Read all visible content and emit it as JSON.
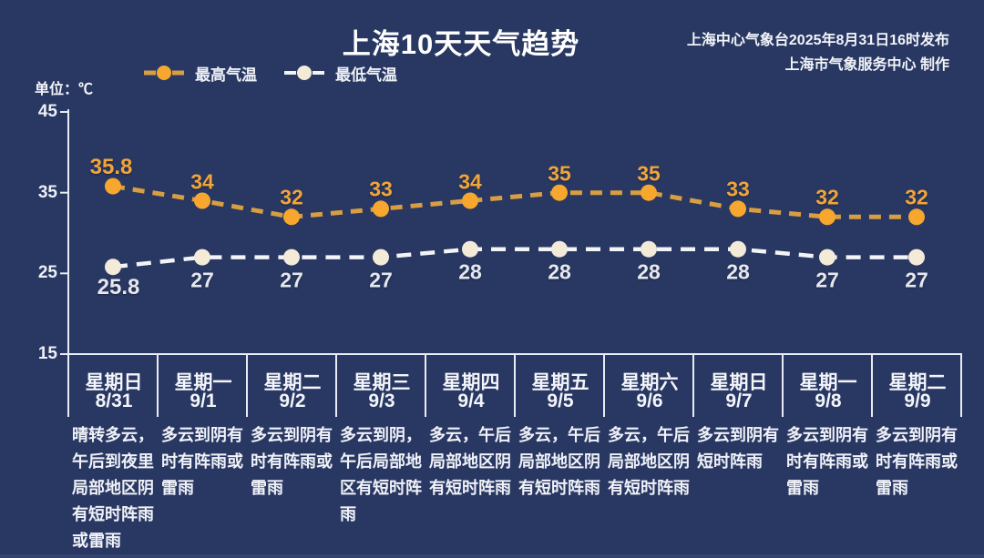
{
  "header": {
    "title": "上海10天天气趋势",
    "publisher_line1": "上海中心气象台2025年8月31日16时发布",
    "publisher_line2": "上海市气象服务中心 制作"
  },
  "unit_label": "单位：℃",
  "colors": {
    "background": "#293863",
    "max_line": "#d89e41",
    "max_dot": "#f7a72d",
    "max_label": "#f0a53a",
    "min_line": "#f3f4f7",
    "min_dot": "#f3ead8",
    "min_label": "#e6e8ef",
    "axis": "#e9ecf4",
    "text": "#f3f5fa"
  },
  "chart_data": {
    "type": "line",
    "title": "上海10天天气趋势",
    "ylabel": "单位：℃",
    "ylim": [
      15,
      45
    ],
    "yticks": [
      45,
      35,
      25,
      15
    ],
    "grid": false,
    "legend_position": "top-left",
    "weekdays": [
      "星期日",
      "星期一",
      "星期二",
      "星期三",
      "星期四",
      "星期五",
      "星期六",
      "星期日",
      "星期一",
      "星期二"
    ],
    "categories": [
      "8/31",
      "9/1",
      "9/2",
      "9/3",
      "9/4",
      "9/5",
      "9/6",
      "9/7",
      "9/8",
      "9/9"
    ],
    "descriptions": [
      "晴转多云，午后到夜里局部地区阴有短时阵雨或雷雨",
      "多云到阴有时有阵雨或雷雨",
      "多云到阴有时有阵雨或雷雨",
      "多云到阴，午后局部地区有短时阵雨",
      "多云，午后局部地区阴有短时阵雨",
      "多云，午后局部地区阴有短时阵雨",
      "多云，午后局部地区阴有短时阵雨",
      "多云到阴有短时阵雨",
      "多云到阴有时有阵雨或雷雨",
      "多云到阴有时有阵雨或雷雨"
    ],
    "series": [
      {
        "name": "最高气温",
        "values": [
          35.8,
          34,
          32,
          33,
          34,
          35,
          35,
          33,
          32,
          32
        ]
      },
      {
        "name": "最低气温",
        "values": [
          25.8,
          27,
          27,
          27,
          28,
          28,
          28,
          28,
          27,
          27
        ]
      }
    ]
  }
}
